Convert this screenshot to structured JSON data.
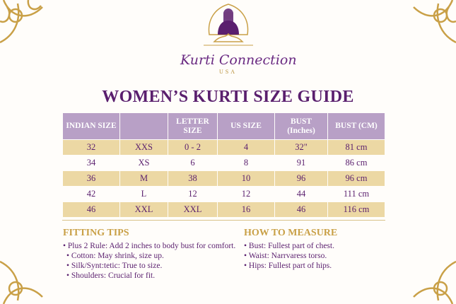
{
  "logo": {
    "brand": "Kurti Connection",
    "sub": "USA"
  },
  "title": "WOMEN’S KURTI SIZE GUIDE",
  "table": {
    "headers": [
      "INDIAN SIZE",
      "",
      "LETTER SIZE",
      "US SIZE",
      "BUST (Inches)",
      "BUST (CM)"
    ],
    "rows": [
      [
        "32",
        "XXS",
        "0 - 2",
        "4",
        "32\"",
        "81 cm"
      ],
      [
        "34",
        "XS",
        "6",
        "8",
        "91",
        "86 cm"
      ],
      [
        "36",
        "M",
        "38",
        "10",
        "96",
        "96 cm"
      ],
      [
        "42",
        "L",
        "12",
        "12",
        "44",
        "111 cm"
      ],
      [
        "46",
        "XXL",
        "XXL",
        "16",
        "46",
        "116 cm"
      ]
    ]
  },
  "fitting_tips": {
    "heading": "FITTING TIPS",
    "items": [
      "Plus 2 Rule: Add 2 inches to body bust for comfort.",
      "Cotton: May shrink, size up.",
      "Silk/Synt:tetic: True to size.",
      "Shoulders: Crucial for fit."
    ]
  },
  "how_to_measure": {
    "heading": "HOW TO MEASURE",
    "items": [
      "Bust: Fullest part of chest.",
      "Waist: Narrvaress torso.",
      "Hips: Fullest part of hips."
    ]
  },
  "colors": {
    "purple": "#5a1f6e",
    "gold": "#c9a047",
    "header": "#b8a0c6",
    "row_alt": "#ecd8a4"
  }
}
